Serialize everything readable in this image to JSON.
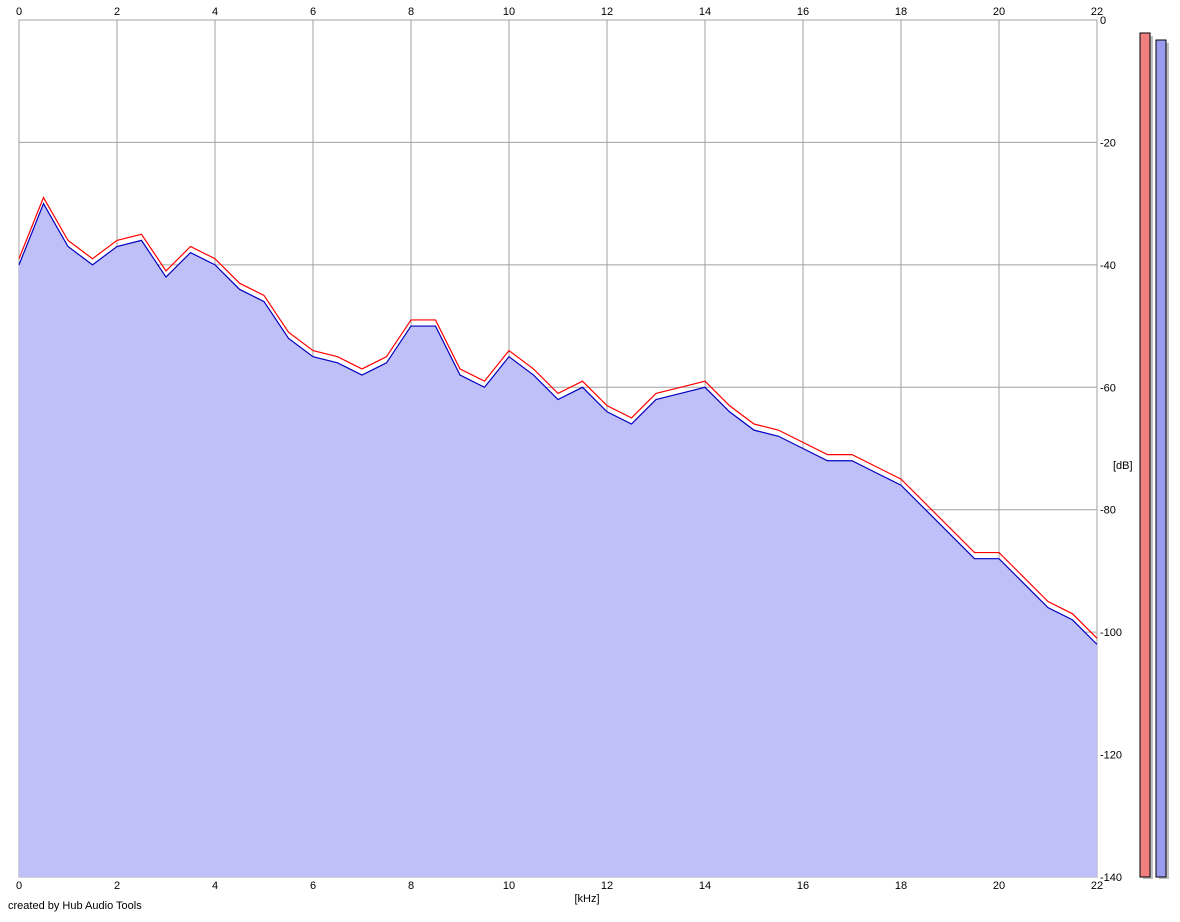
{
  "chart_data": {
    "type": "area",
    "x": [
      0,
      0.5,
      1,
      1.5,
      2,
      2.5,
      3,
      3.5,
      4,
      4.5,
      5,
      5.5,
      6,
      6.5,
      7,
      7.5,
      8,
      8.5,
      9,
      9.5,
      10,
      10.5,
      11,
      11.5,
      12,
      12.5,
      13,
      13.5,
      14,
      14.5,
      15,
      15.5,
      16,
      16.5,
      17,
      17.5,
      18,
      18.5,
      19,
      19.5,
      20,
      20.5,
      21,
      21.5,
      22
    ],
    "series": [
      {
        "color": "#ff0000",
        "values": [
          -39,
          -29,
          -36,
          -39,
          -36,
          -35,
          -41,
          -37,
          -39,
          -43,
          -45,
          -51,
          -54,
          -55,
          -57,
          -55,
          -49,
          -49,
          -57,
          -59,
          -54,
          -57,
          -61,
          -59,
          -63,
          -65,
          -61,
          -60,
          -59,
          -63,
          -66,
          -67,
          -69,
          -71,
          -71,
          -73,
          -75,
          -79,
          -83,
          -87,
          -87,
          -91,
          -95,
          -97,
          -101
        ]
      },
      {
        "color": "#0000c0",
        "fill": "#c0c0f8",
        "values": [
          -40,
          -30,
          -37,
          -40,
          -37,
          -36,
          -42,
          -38,
          -40,
          -44,
          -46,
          -52,
          -55,
          -56,
          -58,
          -56,
          -50,
          -50,
          -58,
          -60,
          -55,
          -58,
          -62,
          -60,
          -64,
          -66,
          -62,
          -61,
          -60,
          -64,
          -67,
          -68,
          -70,
          -72,
          -72,
          -74,
          -76,
          -80,
          -84,
          -88,
          -88,
          -92,
          -96,
          -98,
          -102
        ]
      }
    ],
    "xlim": [
      0,
      22
    ],
    "xticks": [
      0,
      2,
      4,
      6,
      8,
      10,
      12,
      14,
      16,
      18,
      20,
      22
    ],
    "ylim": [
      -140,
      0
    ],
    "yticks": [
      0,
      -20,
      -40,
      -60,
      -80,
      -100,
      -120,
      -140
    ],
    "x_label": "[kHz]",
    "y_label": "[dB]",
    "grid": true,
    "credit": "created by Hub Audio Tools"
  }
}
